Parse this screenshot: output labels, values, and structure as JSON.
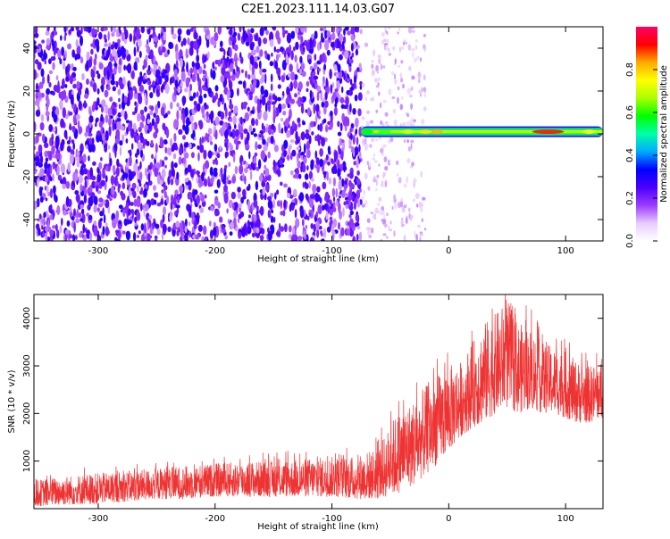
{
  "title": "C2E1.2023.111.14.03.G07",
  "chart_data": [
    {
      "type": "heatmap",
      "xlabel": "Height of straight line (km)",
      "ylabel": "Frequency (Hz)",
      "xlim": [
        -355,
        132
      ],
      "ylim": [
        -50,
        50
      ],
      "xticks": [
        -300,
        -200,
        -100,
        0,
        100
      ],
      "yticks": [
        -40,
        -20,
        0,
        20,
        40
      ],
      "colorbar": {
        "label": "Normalized spectral amplitude",
        "range": [
          0.0,
          1.0
        ],
        "ticks": [
          0.0,
          0.2,
          0.4,
          0.6,
          0.8
        ],
        "colors": [
          "#ffffff",
          "#e8ccff",
          "#9a3cff",
          "#4b00ff",
          "#0000ff",
          "#00aaff",
          "#00ffaa",
          "#00ff00",
          "#aaff00",
          "#ffff00",
          "#ffaa00",
          "#ff0000",
          "#ff0066"
        ]
      },
      "regions": [
        {
          "name": "noise",
          "x_range": [
            -355,
            -75
          ],
          "y_range": [
            -50,
            50
          ],
          "amplitude": 0.12
        },
        {
          "name": "signal line",
          "x_range": [
            -75,
            132
          ],
          "y_center": 1,
          "amplitude": 0.65,
          "peak_x": 85,
          "peak_amplitude": 0.9
        }
      ]
    },
    {
      "type": "line",
      "xlabel": "Height of straight line (km)",
      "ylabel": "SNR (10 * v/v)",
      "xlim": [
        -355,
        132
      ],
      "ylim": [
        0,
        4500
      ],
      "xticks": [
        -300,
        -200,
        -100,
        0,
        100
      ],
      "yticks": [
        1000,
        2000,
        3000,
        4000
      ],
      "color": "#ee3333",
      "series": [
        {
          "x": [
            -355,
            -325,
            -300,
            -275,
            -250,
            -225,
            -200,
            -175,
            -150,
            -125,
            -100,
            -80,
            -60,
            -45,
            -30,
            -15,
            0,
            10,
            20,
            30,
            40,
            50,
            60,
            70,
            80,
            90,
            100,
            110,
            120,
            132
          ],
          "lower": [
            50,
            80,
            100,
            150,
            200,
            200,
            250,
            250,
            250,
            250,
            250,
            200,
            200,
            300,
            500,
            800,
            1200,
            1500,
            1700,
            1800,
            2000,
            2100,
            2000,
            2100,
            2000,
            2000,
            1900,
            1800,
            1800,
            1900
          ],
          "upper": [
            600,
            700,
            750,
            800,
            850,
            900,
            950,
            1000,
            1000,
            1050,
            1100,
            1100,
            1300,
            2000,
            2300,
            2700,
            3000,
            3100,
            3500,
            3900,
            4100,
            4400,
            3900,
            3800,
            3500,
            3400,
            3300,
            3100,
            3000,
            3100
          ]
        }
      ]
    }
  ]
}
